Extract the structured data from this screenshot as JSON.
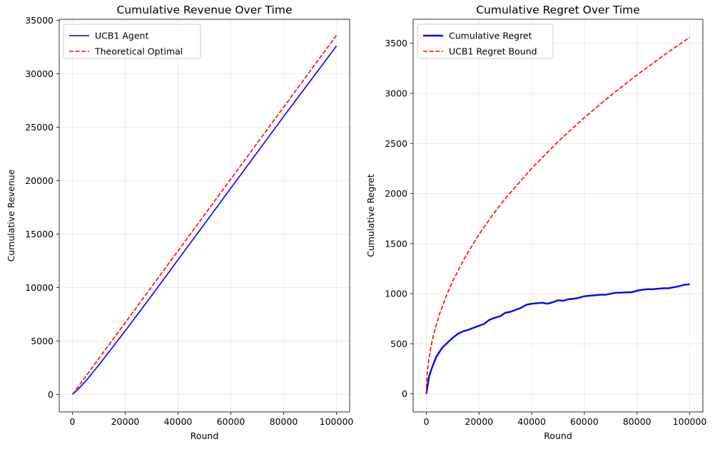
{
  "chart_data": [
    {
      "type": "line",
      "title": "Cumulative Revenue Over Time",
      "xlabel": "Round",
      "ylabel": "Cumulative Revenue",
      "xlim": [
        -5000,
        105000
      ],
      "ylim": [
        -1630,
        35100
      ],
      "xticks": [
        0,
        20000,
        40000,
        60000,
        80000,
        100000
      ],
      "yticks": [
        0,
        5000,
        10000,
        15000,
        20000,
        25000,
        30000,
        35000
      ],
      "grid": true,
      "legend_position": "top-left",
      "series": [
        {
          "name": "UCB1 Agent",
          "color": "#0000ff",
          "style": "solid",
          "x": [
            0,
            2000,
            5000,
            10000,
            20000,
            30000,
            40000,
            50000,
            60000,
            70000,
            80000,
            90000,
            100000
          ],
          "y": [
            0,
            450,
            1250,
            2750,
            5950,
            9250,
            12600,
            15950,
            19300,
            22650,
            26000,
            29300,
            32600
          ]
        },
        {
          "name": "Theoretical Optimal",
          "color": "#ff0000",
          "style": "dashed",
          "x": [
            0,
            100000
          ],
          "y": [
            0,
            33600
          ]
        }
      ]
    },
    {
      "type": "line",
      "title": "Cumulative Regret Over Time",
      "xlabel": "Round",
      "ylabel": "Cumulative Regret",
      "xlim": [
        -5000,
        105000
      ],
      "ylim": [
        -180,
        3740
      ],
      "xticks": [
        0,
        20000,
        40000,
        60000,
        80000,
        100000
      ],
      "yticks": [
        0,
        500,
        1000,
        1500,
        2000,
        2500,
        3000,
        3500
      ],
      "grid": true,
      "legend_position": "top-left",
      "series": [
        {
          "name": "Cumulative Regret",
          "color": "#0000ff",
          "style": "solid-thick",
          "x": [
            0,
            1000,
            2000,
            3000,
            4000,
            5000,
            6000,
            8000,
            10000,
            12000,
            14000,
            16000,
            18000,
            20000,
            22000,
            24000,
            26000,
            28000,
            30000,
            32000,
            34000,
            36000,
            38000,
            40000,
            42000,
            44000,
            46000,
            48000,
            50000,
            52000,
            54000,
            56000,
            58000,
            60000,
            62000,
            64000,
            66000,
            68000,
            70000,
            72000,
            74000,
            76000,
            78000,
            80000,
            82000,
            84000,
            86000,
            88000,
            90000,
            92000,
            94000,
            96000,
            98000,
            100000
          ],
          "y": [
            0,
            170,
            250,
            320,
            380,
            420,
            460,
            510,
            560,
            600,
            625,
            640,
            660,
            680,
            700,
            740,
            760,
            775,
            810,
            820,
            840,
            860,
            890,
            900,
            905,
            910,
            900,
            915,
            935,
            930,
            945,
            950,
            960,
            975,
            980,
            985,
            990,
            990,
            1000,
            1010,
            1010,
            1015,
            1015,
            1030,
            1040,
            1045,
            1045,
            1050,
            1055,
            1055,
            1065,
            1075,
            1090,
            1095
          ]
        },
        {
          "name": "UCB1 Regret Bound",
          "color": "#ff0000",
          "style": "dashed",
          "x": [
            0,
            250,
            500,
            1000,
            2000,
            3000,
            5000,
            7500,
            10000,
            15000,
            20000,
            25000,
            30000,
            40000,
            50000,
            60000,
            70000,
            80000,
            90000,
            100000
          ],
          "y": [
            0,
            178,
            252,
            356,
            503,
            617,
            796,
            975,
            1126,
            1379,
            1592,
            1780,
            1950,
            2252,
            2518,
            2758,
            2979,
            3184,
            3377,
            3560
          ]
        }
      ]
    }
  ]
}
